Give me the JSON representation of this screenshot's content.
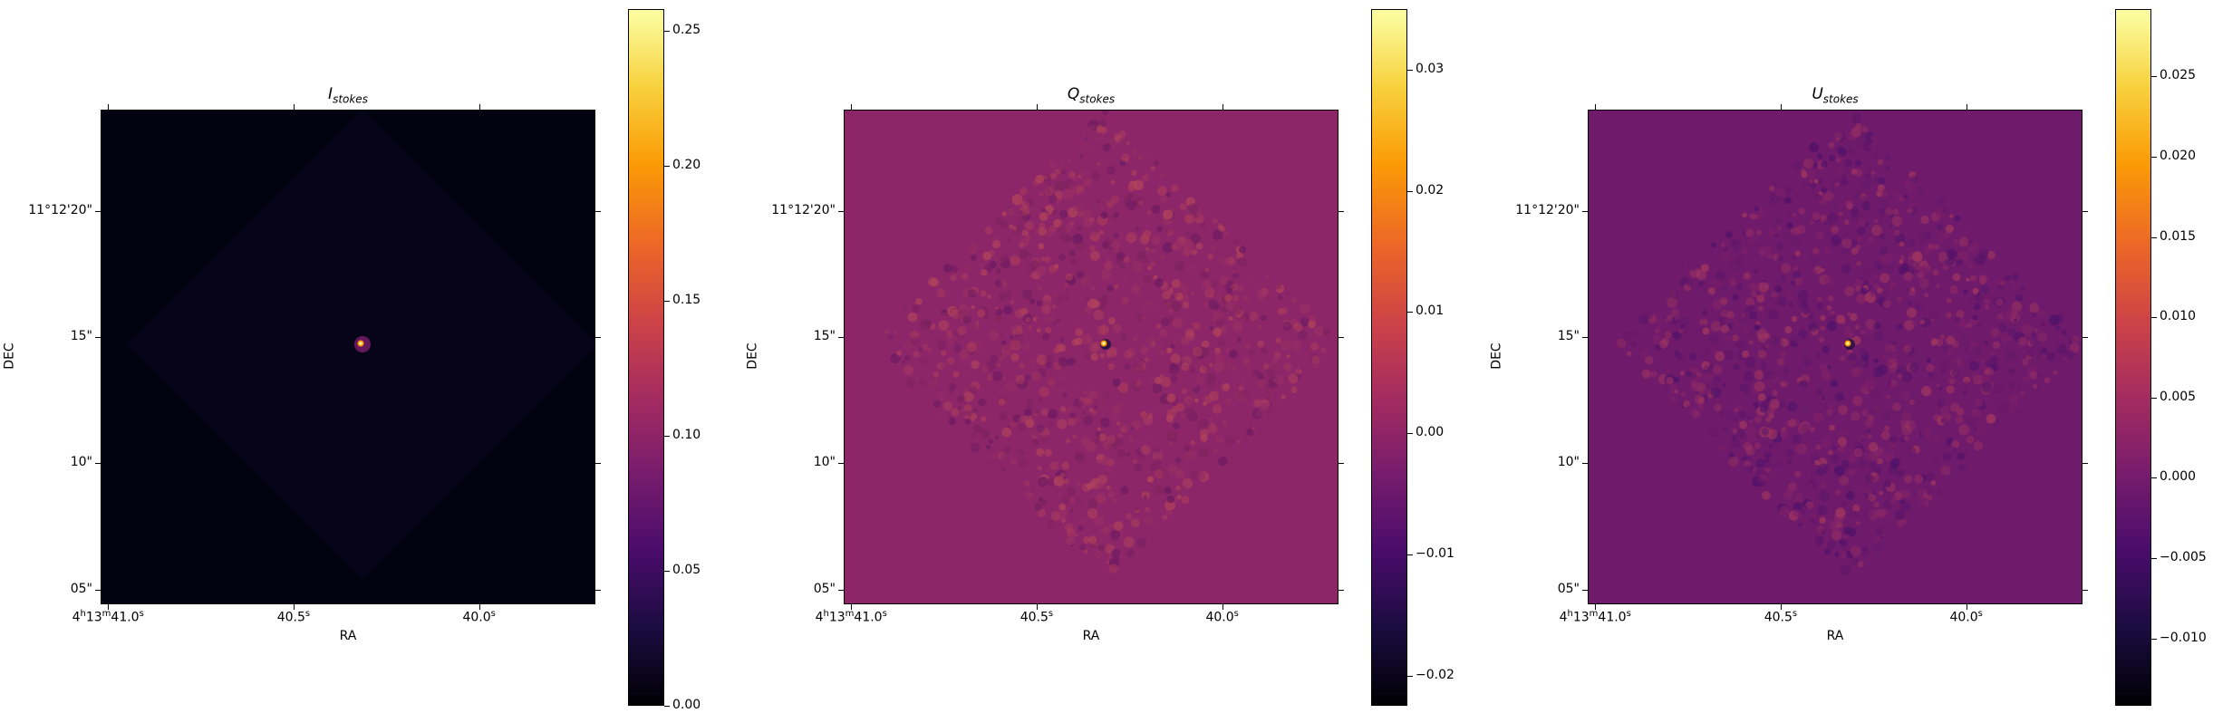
{
  "chart_data": [
    {
      "type": "heatmap",
      "title_base": "I",
      "title_sub": "stokes",
      "xlabel": "RA",
      "ylabel": "DEC",
      "colormap": "inferno",
      "background_color": "#030211",
      "x_ticks": [
        "4h13m41.0s",
        "40.5s",
        "40.0s"
      ],
      "x_tick_parts": [
        {
          "main": "4",
          "sup1": "h",
          "mid": "13",
          "sup2": "m",
          "end": "41.0",
          "sup3": "s"
        },
        {
          "main": "40.5",
          "sup3": "s"
        },
        {
          "main": "40.0",
          "sup3": "s"
        }
      ],
      "y_ticks": [
        "11°12'20\"",
        "15\"",
        "10\"",
        "05\""
      ],
      "colorbar": {
        "ticks": [
          "0.00",
          "0.05",
          "0.10",
          "0.15",
          "0.20",
          "0.25"
        ],
        "range": [
          0.0,
          0.258
        ]
      }
    },
    {
      "type": "heatmap",
      "title_base": "Q",
      "title_sub": "stokes",
      "xlabel": "RA",
      "ylabel": "DEC",
      "colormap": "inferno",
      "background_color": "#8c2668",
      "x_ticks": [
        "4h13m41.0s",
        "40.5s",
        "40.0s"
      ],
      "x_tick_parts": [
        {
          "main": "4",
          "sup1": "h",
          "mid": "13",
          "sup2": "m",
          "end": "41.0",
          "sup3": "s"
        },
        {
          "main": "40.5",
          "sup3": "s"
        },
        {
          "main": "40.0",
          "sup3": "s"
        }
      ],
      "y_ticks": [
        "11°12'20\"",
        "15\"",
        "10\"",
        "05\""
      ],
      "colorbar": {
        "ticks": [
          "−0.02",
          "−0.01",
          "0.00",
          "0.01",
          "0.02",
          "0.03"
        ],
        "range": [
          -0.0225,
          0.035
        ]
      }
    },
    {
      "type": "heatmap",
      "title_base": "U",
      "title_sub": "stokes",
      "xlabel": "RA",
      "ylabel": "DEC",
      "colormap": "inferno",
      "background_color": "#6f1a6a",
      "x_ticks": [
        "4h13m41.0s",
        "40.5s",
        "40.0s"
      ],
      "x_tick_parts": [
        {
          "main": "4",
          "sup1": "h",
          "mid": "13",
          "sup2": "m",
          "end": "41.0",
          "sup3": "s"
        },
        {
          "main": "40.5",
          "sup3": "s"
        },
        {
          "main": "40.0",
          "sup3": "s"
        }
      ],
      "y_ticks": [
        "11°12'20\"",
        "15\"",
        "10\"",
        "05\""
      ],
      "colorbar": {
        "ticks": [
          "−0.010",
          "−0.005",
          "0.000",
          "0.005",
          "0.010",
          "0.015",
          "0.020",
          "0.025"
        ],
        "range": [
          -0.0142,
          0.0292
        ]
      }
    }
  ]
}
